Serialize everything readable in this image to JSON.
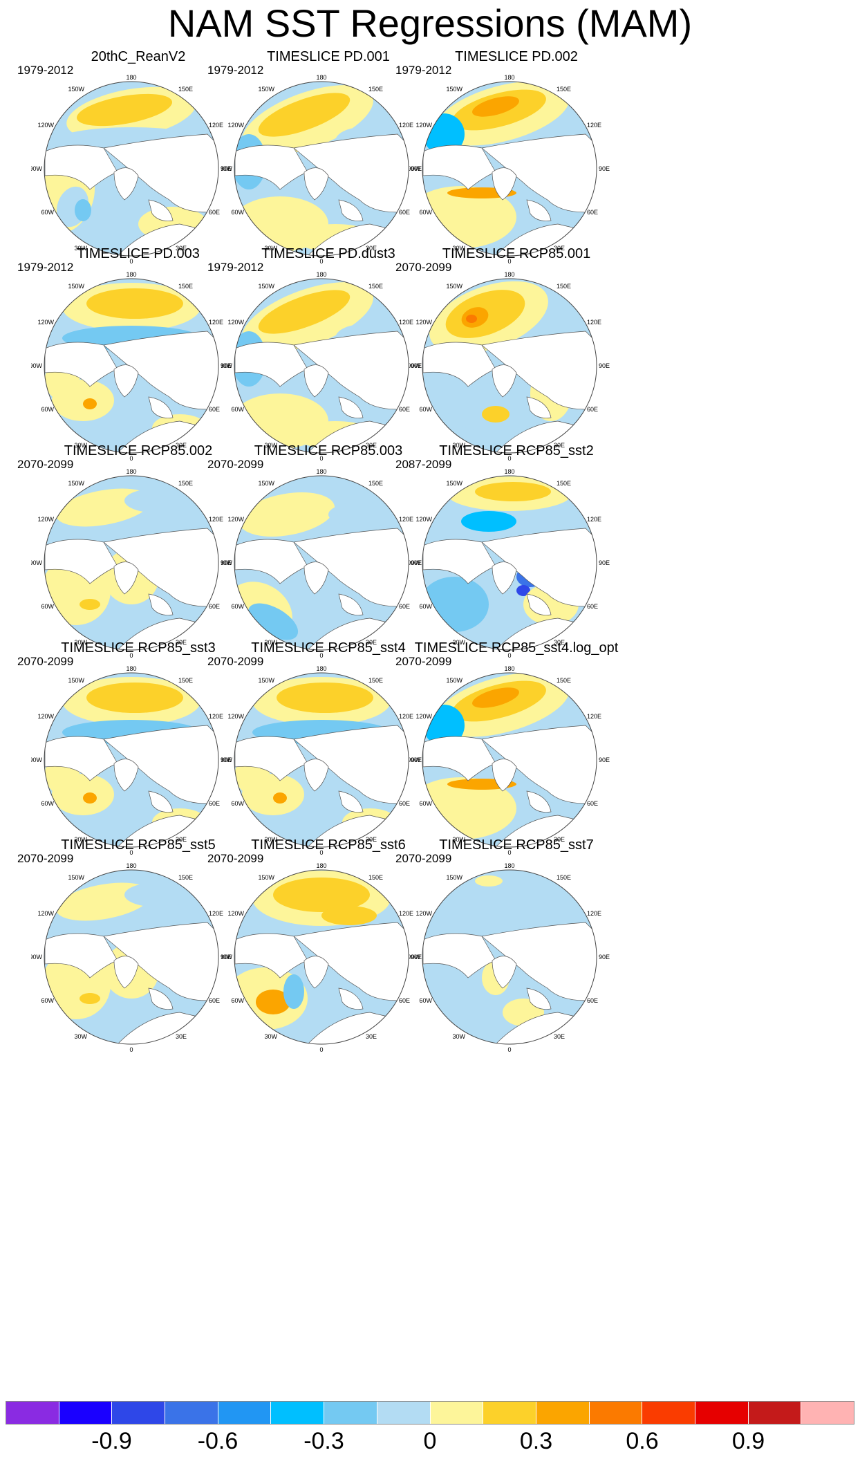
{
  "title": "NAM SST Regressions (MAM)",
  "panels": [
    {
      "title": "20thC_ReanV2",
      "period": "1979-2012",
      "pattern": "mild-east"
    },
    {
      "title": "TIMESLICE PD.001",
      "period": "1979-2012",
      "pattern": "arc-west"
    },
    {
      "title": "TIMESLICE PD.002",
      "period": "1979-2012",
      "pattern": "strong-arc"
    },
    {
      "title": "TIMESLICE PD.003",
      "period": "1979-2012",
      "pattern": "arc-north"
    },
    {
      "title": "TIMESLICE PD.dust3",
      "period": "1979-2012",
      "pattern": "arc-west"
    },
    {
      "title": "TIMESLICE RCP85.001",
      "period": "2070-2099",
      "pattern": "hot-west"
    },
    {
      "title": "TIMESLICE RCP85.002",
      "period": "2070-2099",
      "pattern": "weak"
    },
    {
      "title": "TIMESLICE RCP85.003",
      "period": "2070-2099",
      "pattern": "weak-atl"
    },
    {
      "title": "TIMESLICE RCP85_sst2",
      "period": "2087-2099",
      "pattern": "blue-spots"
    },
    {
      "title": "TIMESLICE RCP85_sst3",
      "period": "2070-2099",
      "pattern": "arc-north"
    },
    {
      "title": "TIMESLICE RCP85_sst4",
      "period": "2070-2099",
      "pattern": "arc-north"
    },
    {
      "title": "TIMESLICE RCP85_sst4.log_opt",
      "period": "2070-2099",
      "pattern": "strong-arc"
    },
    {
      "title": "TIMESLICE RCP85_sst5",
      "period": "2070-2099",
      "pattern": "weak"
    },
    {
      "title": "TIMESLICE RCP85_sst6",
      "period": "2070-2099",
      "pattern": "hot-atl"
    },
    {
      "title": "TIMESLICE RCP85_sst7",
      "period": "2070-2099",
      "pattern": "mostly-blue"
    }
  ],
  "map_labels": {
    "top": "180",
    "bottom": "0",
    "left": "90W",
    "right": "90E",
    "ul": "150W",
    "ur": "150E",
    "l1": "120W",
    "r1": "120E",
    "l2": "60W",
    "r2": "60E",
    "ll": "30W",
    "lr": "30E"
  },
  "colorbar": {
    "colors": [
      "#8a2be2",
      "#1a00ff",
      "#2e47e8",
      "#3a73e8",
      "#2196f3",
      "#00bfff",
      "#74c9f2",
      "#b3dcf3",
      "#fdf59a",
      "#fcd12a",
      "#fba500",
      "#fb7a00",
      "#fa3c00",
      "#e60000",
      "#c41a1a",
      "#ffb3b3"
    ],
    "labels": [
      "-0.9",
      "-0.6",
      "-0.3",
      "0",
      "0.3",
      "0.6",
      "0.9"
    ]
  }
}
